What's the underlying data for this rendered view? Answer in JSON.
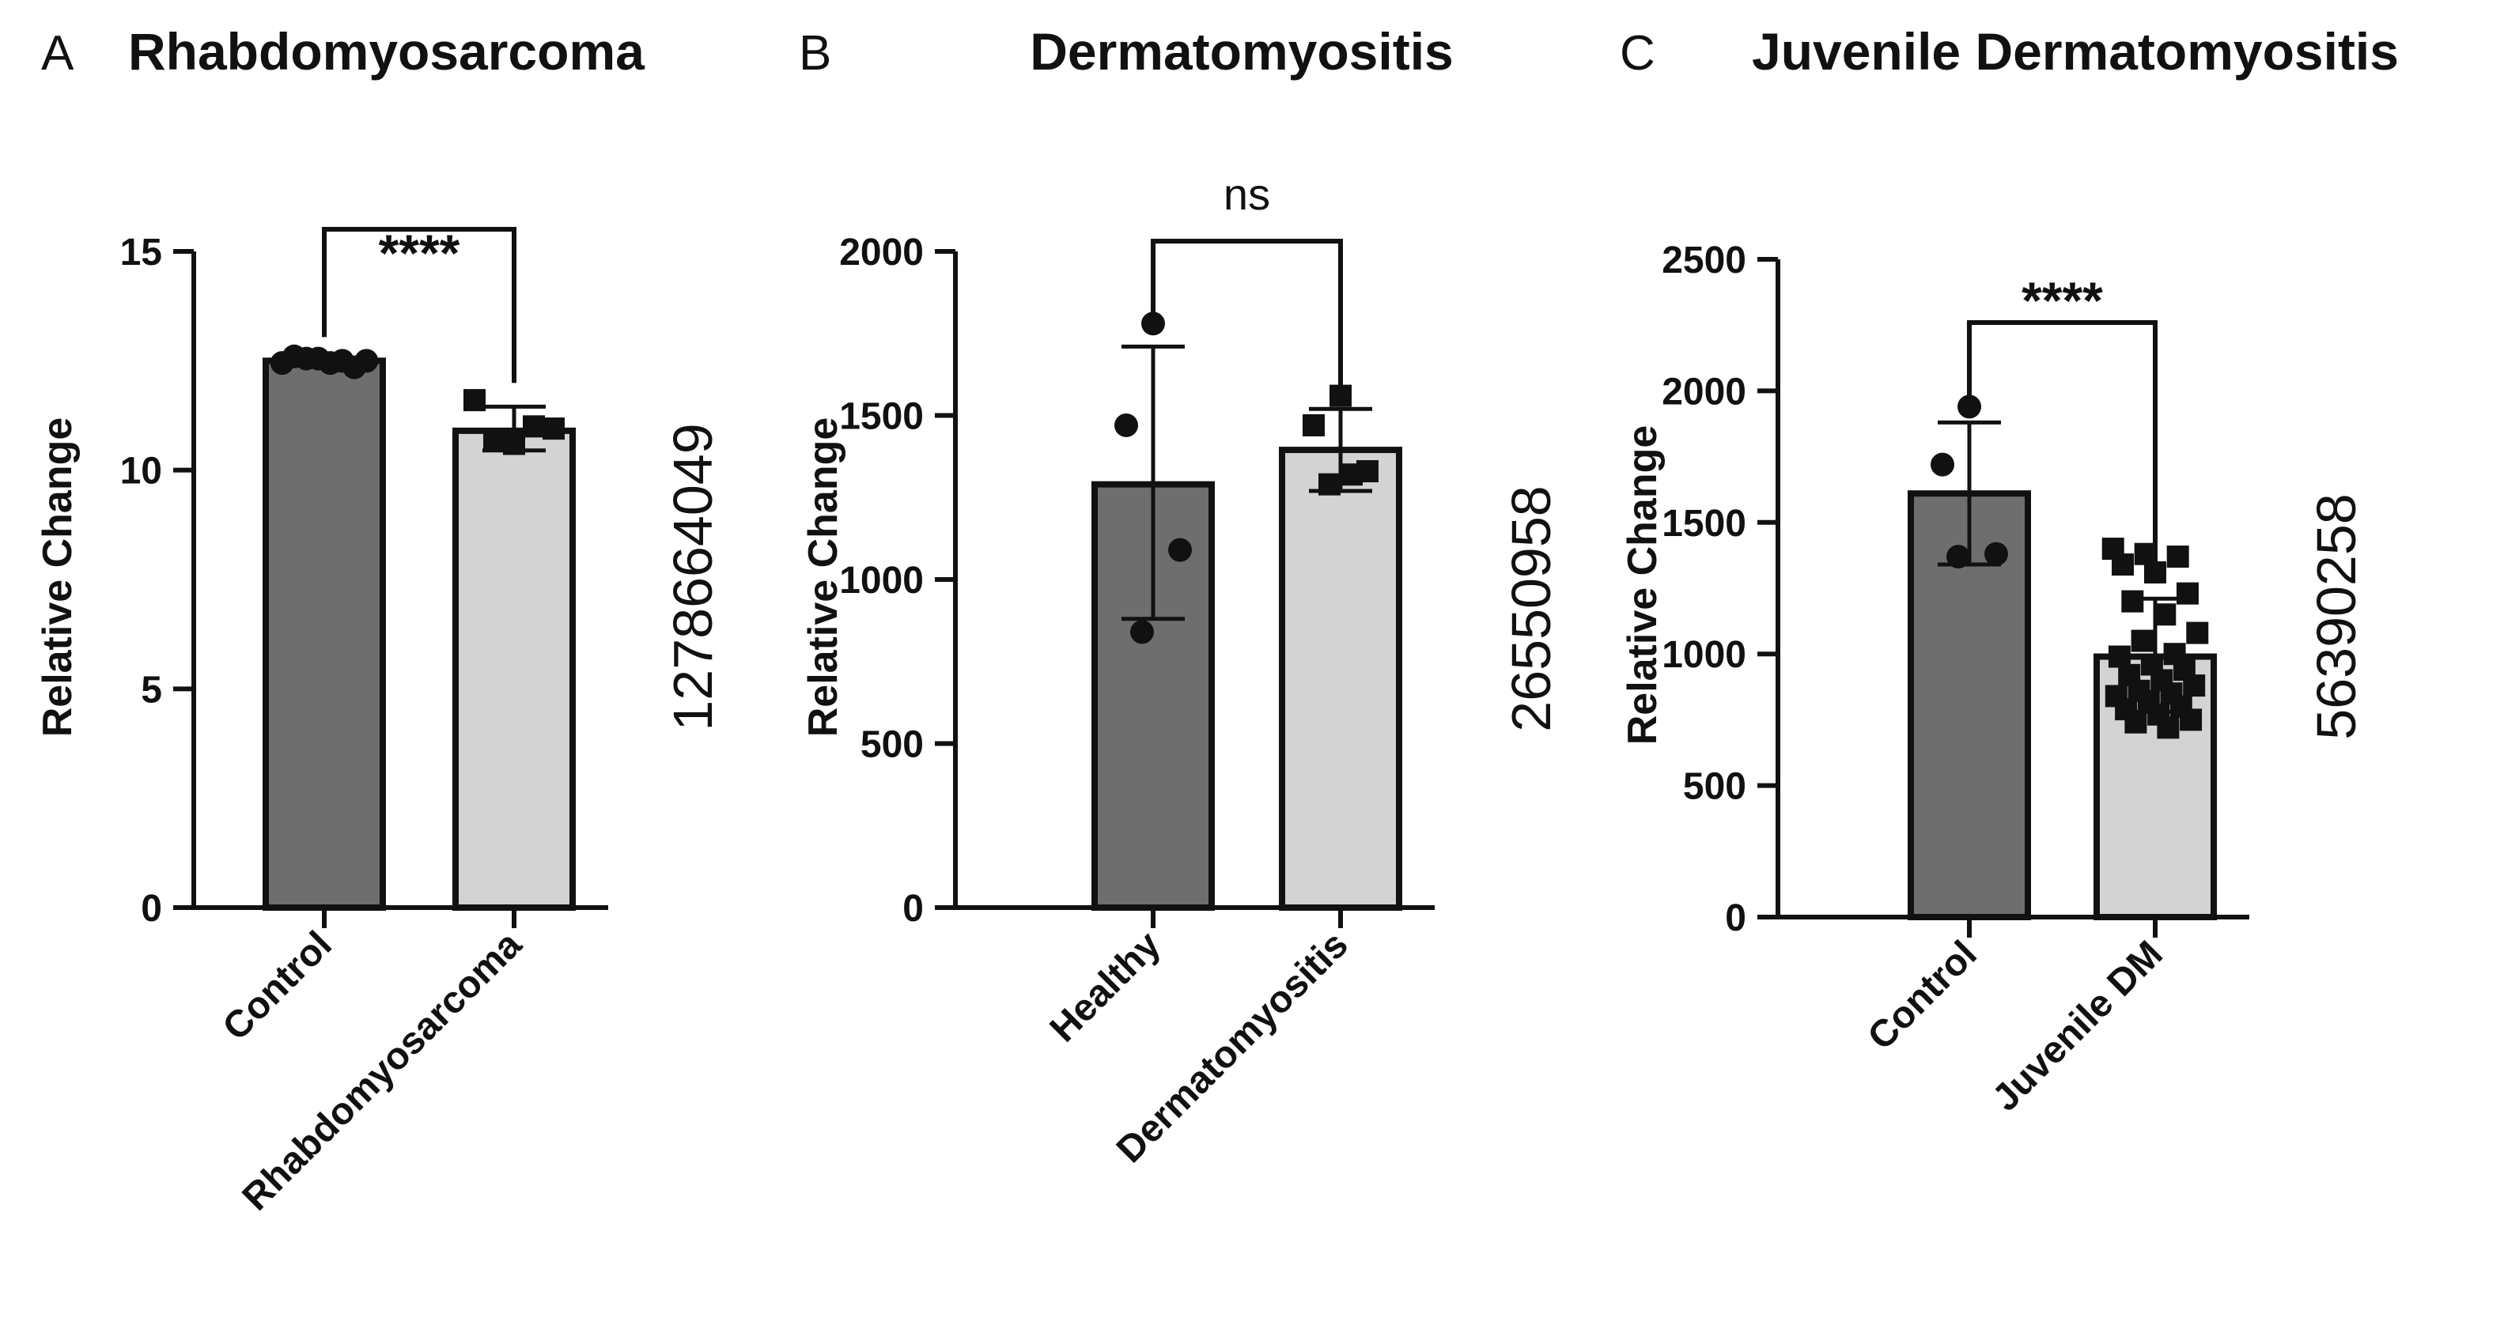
{
  "figure": {
    "colors": {
      "dark_bar": "#6e6e6e",
      "light_bar": "#d3d3d3",
      "ink": "#111111"
    }
  },
  "chart_data": [
    {
      "type": "bar",
      "panel_letter": "A",
      "title": "Rhabdomyosarcoma",
      "ylabel": "Relative Change",
      "side_id": "1278664049",
      "ylim": [
        0,
        15
      ],
      "yticks": [
        0,
        5,
        10,
        15
      ],
      "categories": [
        "Control",
        "Rhabdomyosarcoma"
      ],
      "values": [
        12.5,
        10.9
      ],
      "error": [
        [
          12.5,
          12.5
        ],
        [
          10.45,
          11.45
        ]
      ],
      "points": [
        {
          "marker": "circle",
          "values": [
            12.45,
            12.5,
            12.55,
            12.5,
            12.45,
            12.6,
            12.35,
            12.55
          ]
        },
        {
          "marker": "square",
          "values": [
            11.6,
            10.7,
            10.6,
            11.0,
            10.95
          ]
        }
      ],
      "significance": "****"
    },
    {
      "type": "bar",
      "panel_letter": "B",
      "title": "Dermatomyositis",
      "ylabel": "Relative Change",
      "side_id": "26550958",
      "ylim": [
        0,
        2000
      ],
      "yticks": [
        0,
        500,
        1000,
        1500,
        2000
      ],
      "categories": [
        "Healthy",
        "Dermatomyositis"
      ],
      "values": [
        1290,
        1395
      ],
      "error": [
        [
          880,
          1710
        ],
        [
          1270,
          1520
        ]
      ],
      "points": [
        {
          "marker": "circle",
          "values": [
            1780,
            1470,
            1090,
            840
          ]
        },
        {
          "marker": "square",
          "values": [
            1560,
            1470,
            1330,
            1290,
            1320
          ]
        }
      ],
      "significance": "ns"
    },
    {
      "type": "bar",
      "panel_letter": "C",
      "title": "Juvenile Dermatomyositis",
      "ylabel": "Relative Change",
      "side_id": "56390258",
      "ylim": [
        0,
        2500
      ],
      "yticks": [
        0,
        500,
        1000,
        1500,
        2000,
        2500
      ],
      "categories": [
        "Control",
        "Juvenile DM"
      ],
      "values": [
        1610,
        990
      ],
      "error": [
        [
          1340,
          1880
        ],
        [
          780,
          1210
        ]
      ],
      "points": [
        {
          "marker": "circle",
          "values": [
            1940,
            1720,
            1380,
            1370
          ]
        },
        {
          "marker": "square",
          "values": [
            1400,
            1380,
            1370,
            1340,
            1310,
            1230,
            1200,
            1150,
            1080,
            1050,
            1000,
            990,
            960,
            940,
            920,
            900,
            880,
            860,
            850,
            840,
            820,
            800,
            790,
            770,
            750,
            740,
            720
          ]
        }
      ],
      "significance": "****"
    }
  ]
}
